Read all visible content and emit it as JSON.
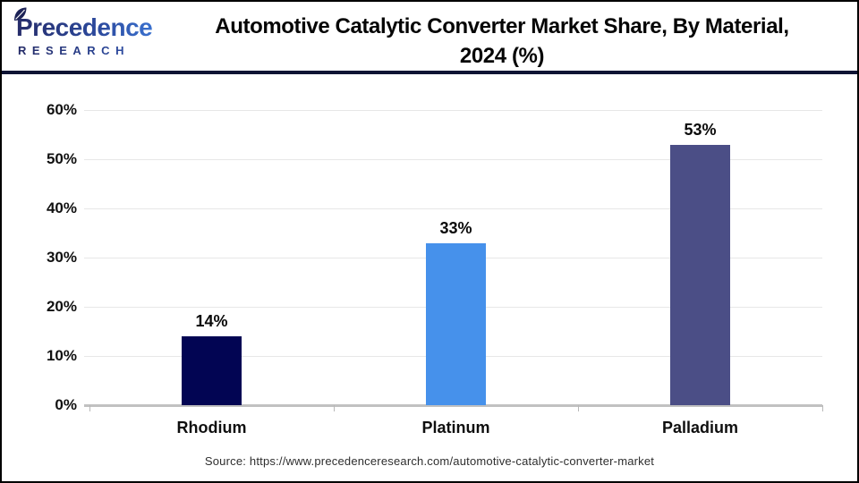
{
  "header": {
    "logo": {
      "wordmark": "Precedence",
      "subtext": "RESEARCH",
      "leaf_icon": "leaf-icon",
      "gradient_start": "#262c6a",
      "gradient_end": "#3e7cdd"
    },
    "title_line1": "Automotive Catalytic Converter Market Share, By Material,",
    "title_line2": "2024 (%)",
    "divider_color": "#0e1434"
  },
  "chart_data": {
    "type": "bar",
    "title": "Automotive Catalytic Converter Market Share, By Material, 2024 (%)",
    "categories": [
      "Rhodium",
      "Platinum",
      "Palladium"
    ],
    "values": [
      14,
      33,
      53
    ],
    "value_labels": [
      "14%",
      "33%",
      "53%"
    ],
    "bar_colors": [
      "#020553",
      "#4691EB",
      "#4B4E86"
    ],
    "xlabel": "",
    "ylabel": "",
    "ylim": [
      0,
      60
    ],
    "ytick_step": 10,
    "ytick_labels": [
      "0%",
      "10%",
      "20%",
      "30%",
      "40%",
      "50%",
      "60%"
    ],
    "grid": true,
    "gridline_color": "#e7e7e7",
    "axis_color": "#c1c1c1",
    "legend": false
  },
  "footer": {
    "source": "Source: https://www.precedenceresearch.com/automotive-catalytic-converter-market"
  }
}
